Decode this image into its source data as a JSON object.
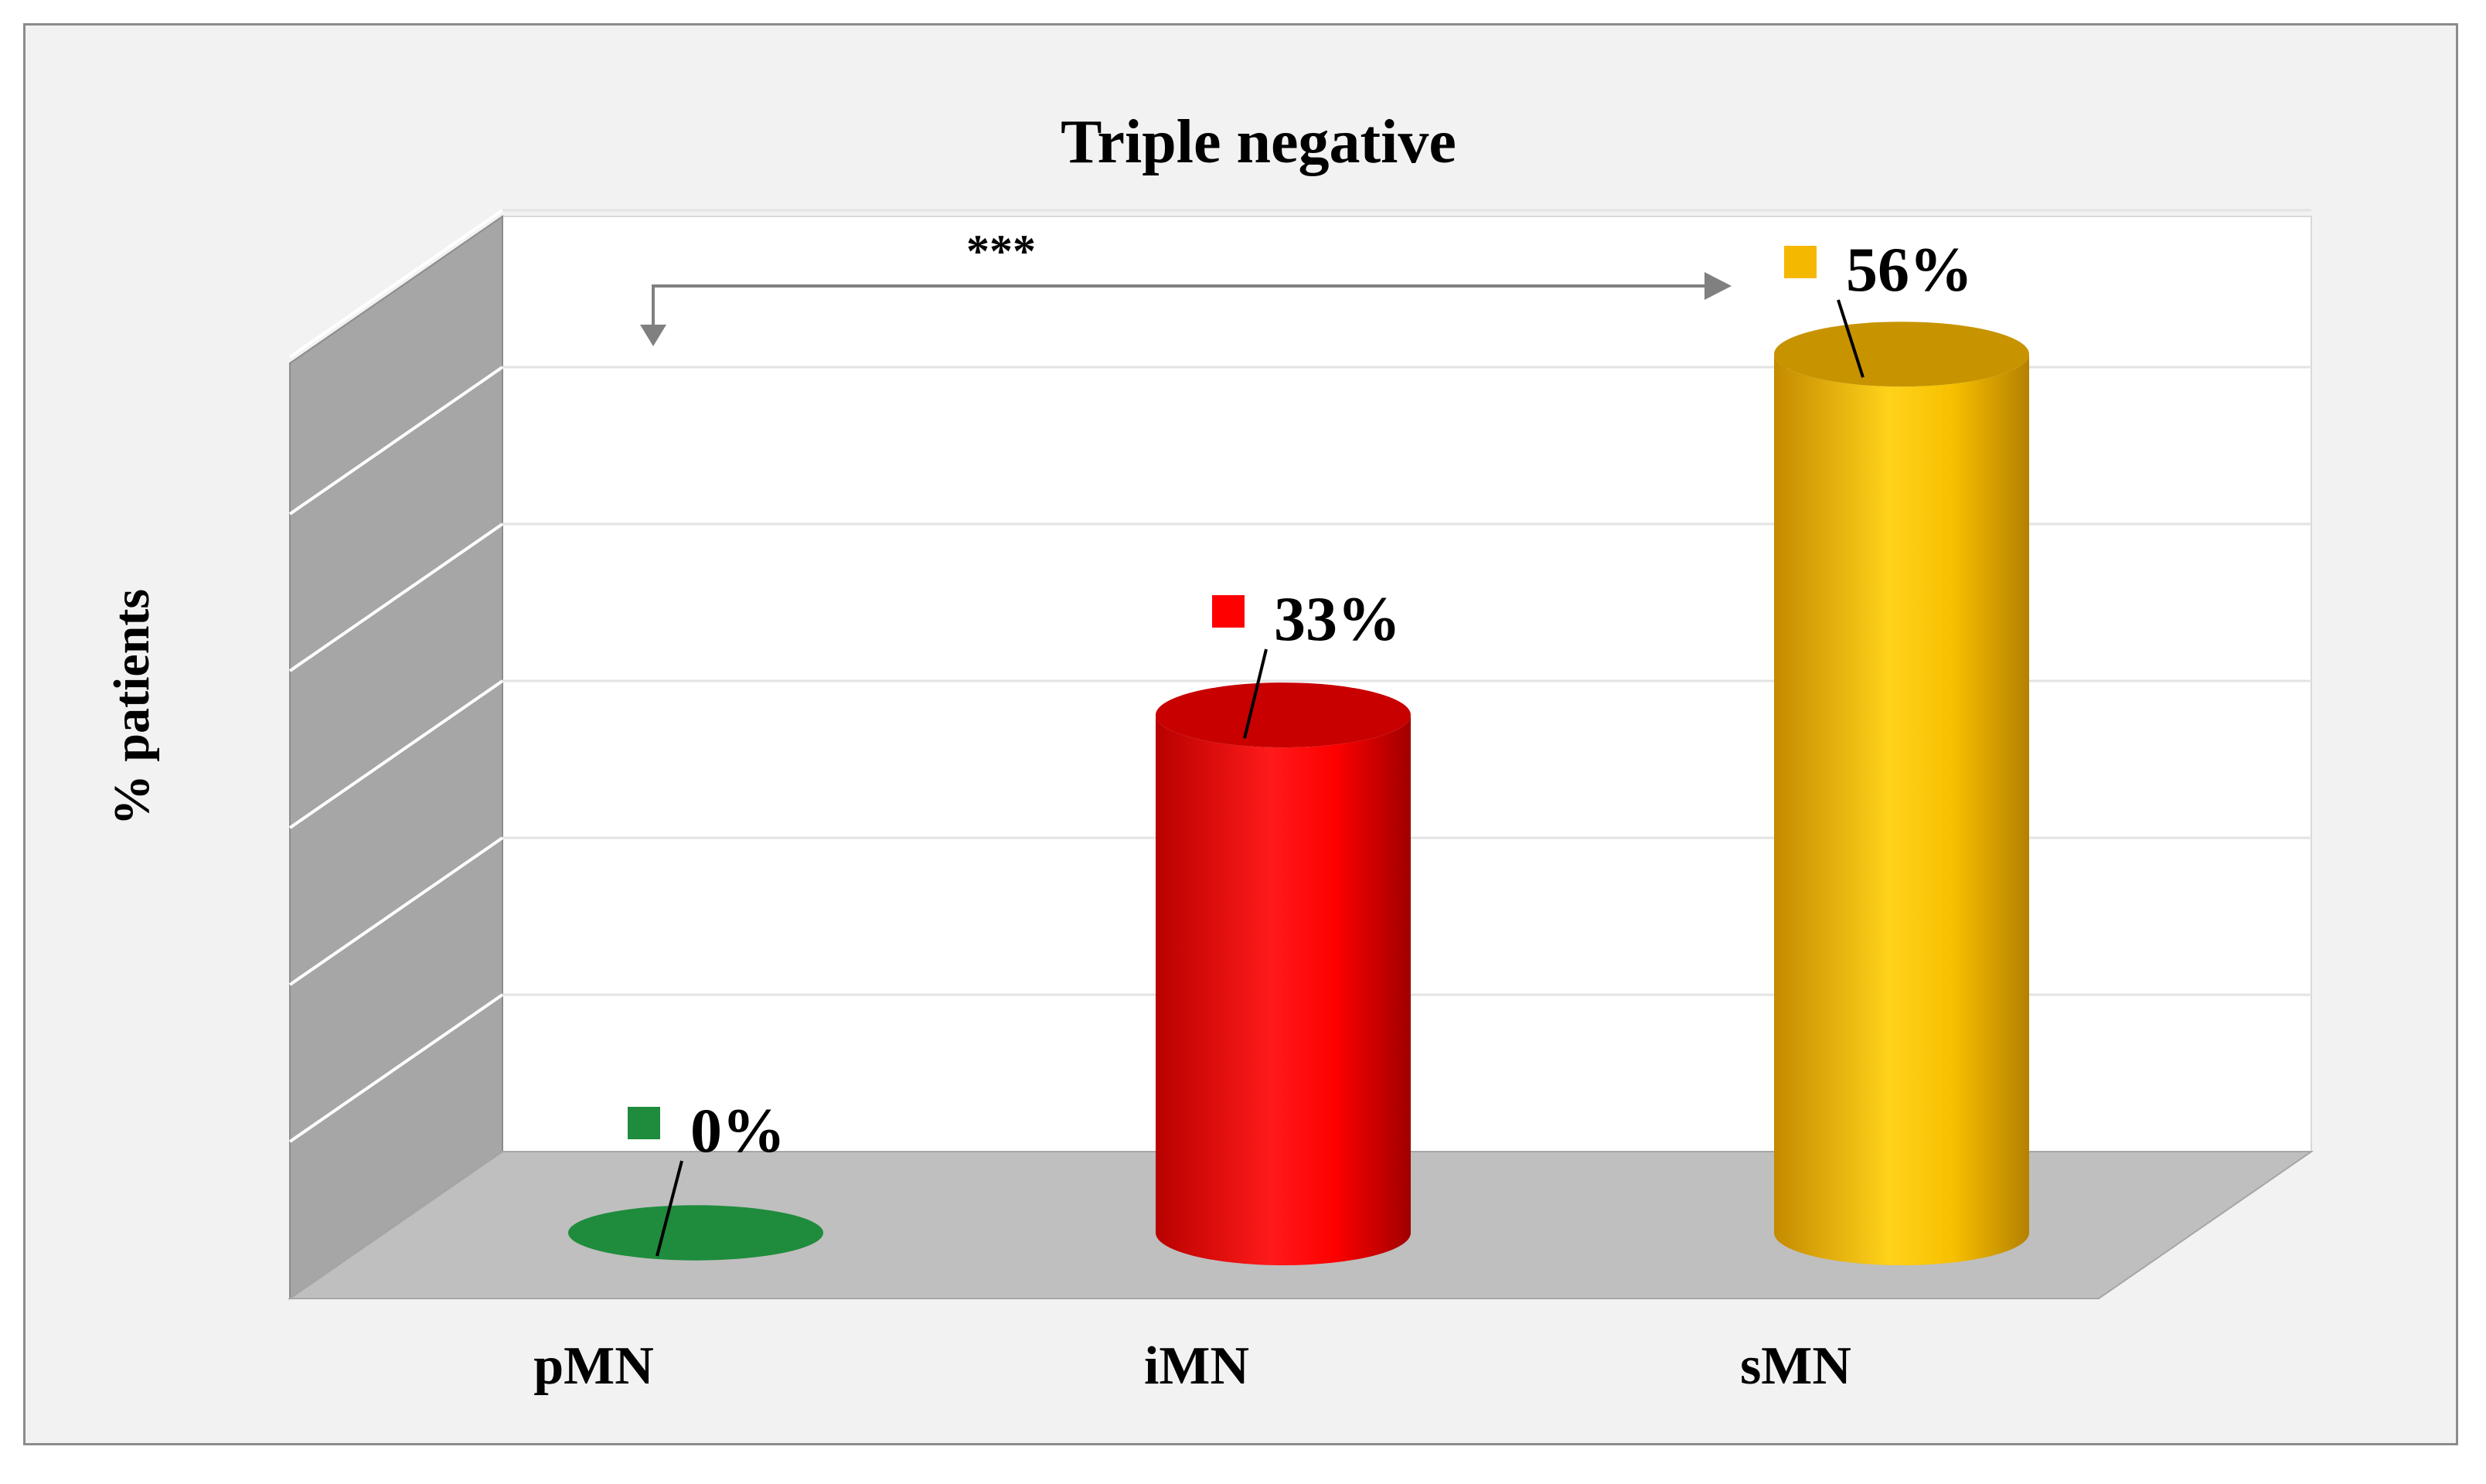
{
  "chart_data": {
    "type": "bar",
    "title": "Triple negative",
    "ylabel": "% patients",
    "xlabel": "",
    "categories": [
      "pMN",
      "iMN",
      "sMN"
    ],
    "values": [
      0,
      33,
      56
    ],
    "value_labels": [
      "0%",
      "33%",
      "56%"
    ],
    "colors": [
      "#1e8c3c",
      "#ff0000",
      "#f5b800"
    ],
    "ylim": [
      0,
      60
    ],
    "gridlines": [
      10,
      20,
      30,
      40,
      50,
      60
    ],
    "grid": true,
    "style": "3d-cylinder",
    "annotation": {
      "text": "***",
      "from_category": "pMN",
      "to_category": "sMN"
    }
  }
}
